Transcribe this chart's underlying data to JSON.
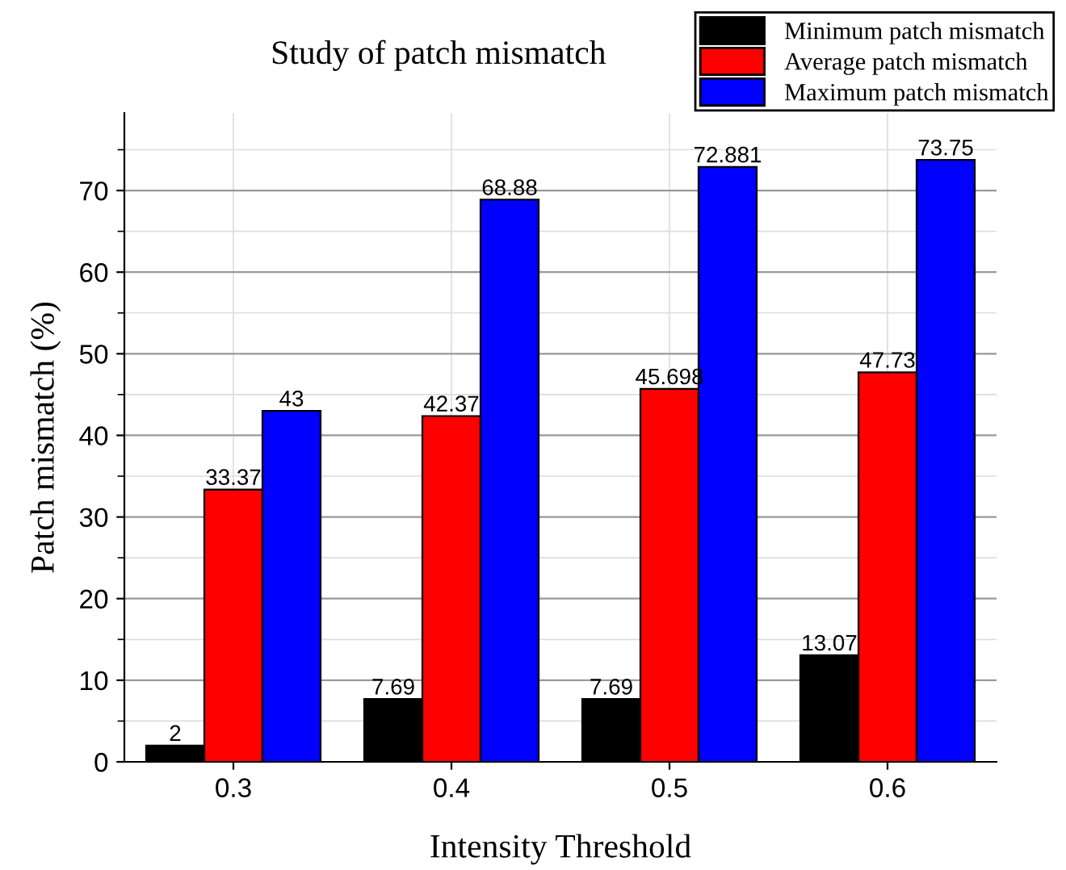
{
  "chart_data": {
    "type": "bar",
    "title": "Study of patch mismatch",
    "xlabel": "Intensity Threshold",
    "ylabel": "Patch mismatch (%)",
    "categories": [
      "0.3",
      "0.4",
      "0.5",
      "0.6"
    ],
    "series": [
      {
        "name": "Minimum patch mismatch",
        "color": "#000000",
        "values": [
          2,
          7.69,
          7.69,
          13.07
        ]
      },
      {
        "name": "Average patch mismatch",
        "color": "#ff0000",
        "values": [
          33.37,
          42.37,
          45.698,
          47.73
        ]
      },
      {
        "name": "Maximum patch mismatch",
        "color": "#0000ff",
        "values": [
          43,
          68.88,
          72.881,
          73.75
        ]
      }
    ],
    "ylim": [
      0,
      79.5
    ],
    "yticks": [
      0,
      10,
      20,
      30,
      40,
      50,
      60,
      70
    ],
    "grid": true,
    "legend": "top right",
    "data_labels": true
  }
}
